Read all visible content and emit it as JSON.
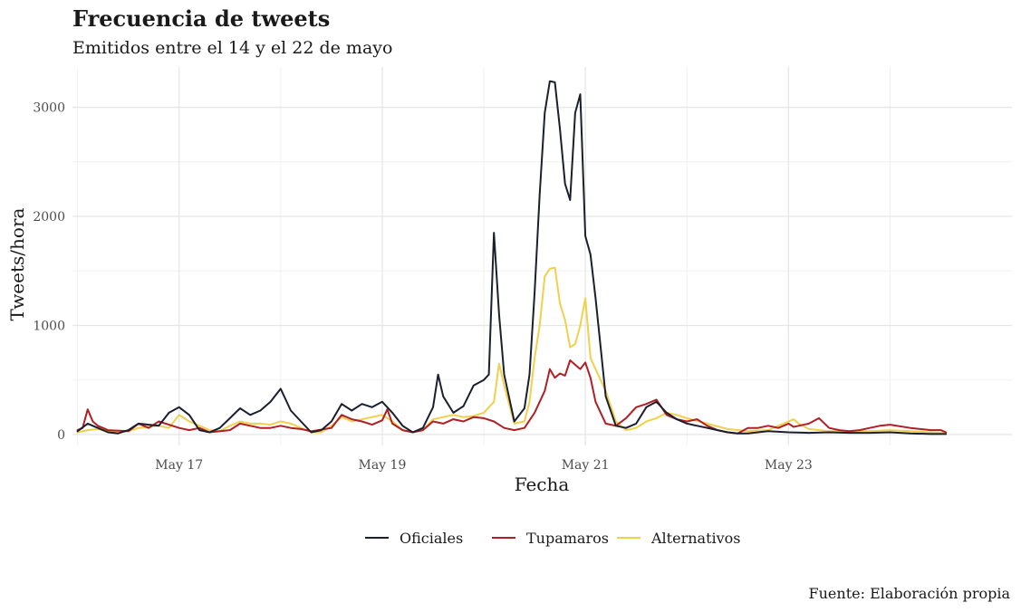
{
  "chart_data": {
    "type": "line",
    "title": "Frecuencia de tweets",
    "subtitle": "Emitidos entre el 14 y el 22 de mayo",
    "xlabel": "Fecha",
    "ylabel": "Tweets/hora",
    "caption": "Fuente: Elaboración propia",
    "x_unit": "day of May",
    "xlim": [
      15.95,
      25.2
    ],
    "ylim": [
      -100,
      3370
    ],
    "x_ticks": [
      {
        "value": 17,
        "label": "May 17"
      },
      {
        "value": 19,
        "label": "May 19"
      },
      {
        "value": 21,
        "label": "May 21"
      },
      {
        "value": 23,
        "label": "May 23"
      }
    ],
    "y_ticks": [
      {
        "value": 0,
        "label": "0"
      },
      {
        "value": 1000,
        "label": "1000"
      },
      {
        "value": 2000,
        "label": "2000"
      },
      {
        "value": 3000,
        "label": "3000"
      }
    ],
    "grid": true,
    "legend_position": "bottom",
    "series": [
      {
        "name": "Oficiales",
        "color": "#1b1f2e",
        "x": [
          16.0,
          16.1,
          16.2,
          16.3,
          16.4,
          16.5,
          16.6,
          16.7,
          16.8,
          16.9,
          17.0,
          17.1,
          17.2,
          17.3,
          17.4,
          17.5,
          17.6,
          17.7,
          17.8,
          17.9,
          18.0,
          18.1,
          18.2,
          18.3,
          18.4,
          18.5,
          18.6,
          18.7,
          18.8,
          18.9,
          19.0,
          19.1,
          19.2,
          19.3,
          19.4,
          19.5,
          19.55,
          19.6,
          19.7,
          19.8,
          19.9,
          20.0,
          20.05,
          20.1,
          20.15,
          20.2,
          20.3,
          20.4,
          20.45,
          20.5,
          20.55,
          20.6,
          20.65,
          20.7,
          20.75,
          20.8,
          20.85,
          20.9,
          20.95,
          21.0,
          21.05,
          21.1,
          21.2,
          21.3,
          21.4,
          21.5,
          21.6,
          21.7,
          21.8,
          21.9,
          22.0,
          22.1,
          22.2,
          22.3,
          22.4,
          22.5,
          22.6,
          22.7,
          22.8,
          22.9,
          23.0,
          23.2,
          23.4,
          23.6,
          23.8,
          24.0,
          24.2,
          24.4,
          24.55
        ],
        "y": [
          30,
          100,
          60,
          20,
          10,
          40,
          100,
          90,
          80,
          200,
          250,
          180,
          40,
          20,
          60,
          150,
          240,
          180,
          220,
          300,
          420,
          220,
          120,
          20,
          40,
          120,
          280,
          220,
          280,
          250,
          300,
          200,
          80,
          20,
          60,
          250,
          550,
          350,
          200,
          260,
          450,
          500,
          550,
          1850,
          1100,
          550,
          120,
          240,
          550,
          1300,
          2200,
          2950,
          3240,
          3230,
          2800,
          2300,
          2150,
          2950,
          3120,
          1820,
          1650,
          1250,
          350,
          80,
          60,
          100,
          250,
          300,
          200,
          140,
          100,
          80,
          60,
          40,
          20,
          10,
          10,
          20,
          30,
          25,
          20,
          15,
          20,
          15,
          15,
          20,
          10,
          5,
          5
        ]
      },
      {
        "name": "Tupamaros",
        "color": "#b01f24",
        "x": [
          16.0,
          16.05,
          16.1,
          16.15,
          16.2,
          16.3,
          16.5,
          16.6,
          16.7,
          16.8,
          17.0,
          17.1,
          17.2,
          17.3,
          17.5,
          17.6,
          17.7,
          17.8,
          17.9,
          18.0,
          18.1,
          18.2,
          18.3,
          18.5,
          18.6,
          18.7,
          18.8,
          18.9,
          19.0,
          19.05,
          19.1,
          19.2,
          19.3,
          19.4,
          19.5,
          19.6,
          19.7,
          19.8,
          19.9,
          20.0,
          20.1,
          20.2,
          20.3,
          20.4,
          20.5,
          20.6,
          20.65,
          20.7,
          20.75,
          20.8,
          20.85,
          20.9,
          20.95,
          21.0,
          21.05,
          21.1,
          21.2,
          21.3,
          21.4,
          21.5,
          21.6,
          21.7,
          21.8,
          21.9,
          22.0,
          22.1,
          22.2,
          22.3,
          22.4,
          22.5,
          22.6,
          22.7,
          22.8,
          22.9,
          23.0,
          23.05,
          23.1,
          23.2,
          23.3,
          23.4,
          23.5,
          23.6,
          23.7,
          23.8,
          23.9,
          24.0,
          24.2,
          24.4,
          24.5,
          24.55
        ],
        "y": [
          40,
          60,
          230,
          120,
          80,
          40,
          30,
          100,
          60,
          120,
          60,
          40,
          60,
          20,
          40,
          100,
          80,
          60,
          60,
          80,
          60,
          50,
          30,
          60,
          180,
          140,
          120,
          90,
          130,
          230,
          100,
          40,
          20,
          40,
          120,
          100,
          140,
          120,
          160,
          150,
          120,
          60,
          40,
          60,
          200,
          400,
          600,
          520,
          560,
          540,
          680,
          640,
          600,
          660,
          520,
          300,
          100,
          80,
          150,
          250,
          280,
          320,
          180,
          140,
          120,
          140,
          80,
          40,
          20,
          10,
          60,
          60,
          80,
          60,
          100,
          70,
          80,
          100,
          150,
          60,
          40,
          30,
          40,
          60,
          80,
          90,
          60,
          40,
          40,
          20
        ]
      },
      {
        "name": "Alternativos",
        "color": "#f0d04c",
        "x": [
          16.0,
          16.1,
          16.2,
          16.3,
          16.4,
          16.5,
          16.6,
          16.7,
          16.8,
          16.9,
          17.0,
          17.1,
          17.2,
          17.3,
          17.4,
          17.5,
          17.6,
          17.7,
          17.8,
          17.9,
          18.0,
          18.1,
          18.2,
          18.3,
          18.4,
          18.5,
          18.6,
          18.7,
          18.8,
          18.9,
          19.0,
          19.1,
          19.2,
          19.3,
          19.4,
          19.5,
          19.6,
          19.7,
          19.8,
          19.9,
          20.0,
          20.05,
          20.1,
          20.15,
          20.2,
          20.3,
          20.4,
          20.45,
          20.5,
          20.55,
          20.6,
          20.65,
          20.7,
          20.75,
          20.8,
          20.85,
          20.9,
          20.95,
          21.0,
          21.05,
          21.1,
          21.2,
          21.3,
          21.4,
          21.5,
          21.6,
          21.7,
          21.8,
          21.9,
          22.0,
          22.2,
          22.4,
          22.6,
          22.8,
          23.0,
          23.05,
          23.1,
          23.2,
          23.4,
          23.6,
          23.8,
          24.0,
          24.2,
          24.4,
          24.55
        ],
        "y": [
          20,
          40,
          50,
          30,
          20,
          30,
          60,
          70,
          80,
          60,
          180,
          120,
          80,
          40,
          30,
          80,
          120,
          100,
          100,
          90,
          120,
          100,
          60,
          20,
          20,
          80,
          160,
          120,
          140,
          160,
          180,
          120,
          40,
          20,
          40,
          140,
          160,
          180,
          160,
          170,
          200,
          250,
          300,
          650,
          450,
          100,
          120,
          300,
          700,
          1000,
          1450,
          1520,
          1530,
          1200,
          1050,
          800,
          830,
          1000,
          1250,
          700,
          600,
          400,
          120,
          40,
          60,
          120,
          150,
          200,
          180,
          150,
          100,
          50,
          30,
          40,
          120,
          140,
          100,
          50,
          30,
          30,
          30,
          40,
          30,
          20,
          15
        ]
      }
    ]
  }
}
